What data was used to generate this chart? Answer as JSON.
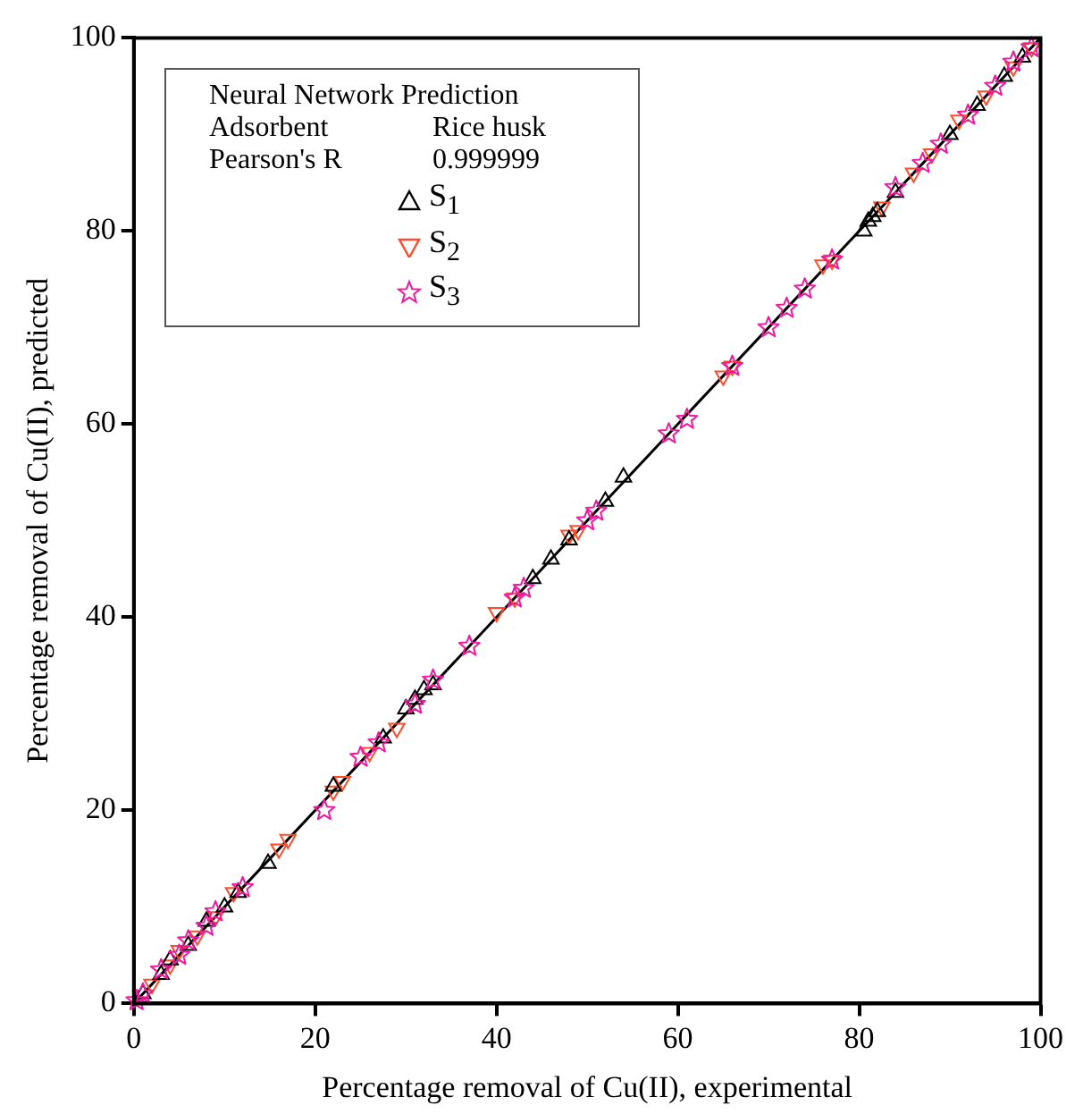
{
  "chart_data": {
    "type": "scatter",
    "xlabel": "Percentage removal of Cu(II), experimental",
    "ylabel": "Percentage removal of Cu(II), predicted",
    "legend_title": "Neural Network Prediction",
    "annotations": [
      "Adsorbent",
      "Rice husk",
      "Pearson's R",
      "0.999999"
    ],
    "xlim": [
      0,
      100
    ],
    "ylim": [
      0,
      100
    ],
    "xticks": [
      0,
      20,
      40,
      60,
      80,
      100
    ],
    "yticks": [
      0,
      20,
      40,
      60,
      80,
      100
    ],
    "grid": false,
    "legend": "top left",
    "series": [
      {
        "name": "S$_{1}$",
        "color": "#000000",
        "marker": "triangle",
        "x": [
          1,
          3,
          4,
          6,
          8,
          10,
          11.5,
          14.8,
          22,
          27.5,
          30,
          31,
          32,
          33,
          44,
          46,
          48,
          52,
          54,
          80.5,
          81,
          81.5,
          82,
          84,
          90,
          93,
          96,
          98
        ],
        "values": [
          1,
          3,
          4.5,
          6,
          8.5,
          10,
          11.5,
          14.5,
          22.5,
          27.5,
          30.5,
          31.5,
          32.5,
          33,
          44,
          46,
          48,
          52,
          54.5,
          80,
          81,
          81.5,
          82,
          84,
          90,
          93,
          96,
          98
        ]
      },
      {
        "name": "S$_{2}$",
        "color": "#ff4b2b",
        "marker": "triangle",
        "x": [
          2,
          4,
          5,
          7,
          9,
          11,
          16,
          17,
          22,
          23,
          26,
          29,
          40,
          42,
          48,
          49,
          65,
          66,
          76,
          77,
          82.5,
          86,
          88,
          91,
          94,
          97,
          99
        ],
        "values": [
          2,
          4,
          5.5,
          7,
          9,
          11.5,
          16,
          17,
          22,
          23,
          26,
          28.5,
          40.5,
          42,
          48.5,
          49,
          65,
          66,
          76.5,
          77,
          82.5,
          86,
          88,
          91.5,
          94,
          97,
          99
        ]
      },
      {
        "name": "S$_{3}$",
        "color": "#f0189c",
        "marker": "star",
        "x": [
          0.3,
          1,
          3,
          5,
          6,
          8,
          9,
          12,
          21,
          25,
          27,
          31,
          33,
          37,
          42,
          43,
          50,
          51,
          59,
          61,
          66,
          70,
          72,
          74,
          77,
          84,
          87,
          89,
          92,
          95,
          97,
          99
        ],
        "values": [
          0.3,
          1,
          3.5,
          5,
          6.5,
          8,
          9.5,
          12,
          20,
          25.5,
          27,
          31,
          33.5,
          37,
          42,
          43,
          50,
          51,
          59,
          60.5,
          66,
          70,
          72,
          74,
          77,
          84.5,
          87,
          89,
          92,
          95,
          97.5,
          99
        ]
      },
      {
        "type": "line",
        "color": "#000000",
        "marker": "none",
        "line_style": "solid",
        "x": [
          0,
          100
        ],
        "values": [
          0,
          100
        ]
      }
    ]
  }
}
